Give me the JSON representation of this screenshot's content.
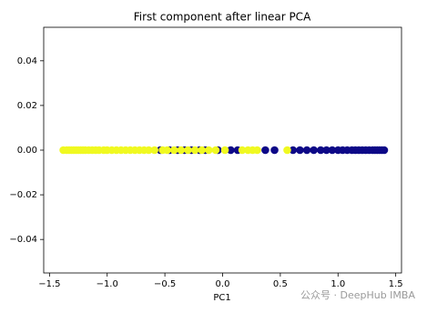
{
  "chart_data": {
    "type": "scatter",
    "title": "First component after linear PCA",
    "x_label": "PC1",
    "xlim": [
      -1.55,
      1.55
    ],
    "ylim": [
      -0.055,
      0.055
    ],
    "xticks": [
      {
        "value": -1.5,
        "label": "−1.5"
      },
      {
        "value": -1.0,
        "label": "−1.0"
      },
      {
        "value": -0.5,
        "label": "−0.5"
      },
      {
        "value": 0,
        "label": "0.0"
      },
      0.5,
      {
        "value": 1,
        "label": "1.0"
      },
      1.5
    ],
    "yticks": [
      {
        "value": -0.04,
        "label": "−0.04"
      },
      {
        "value": -0.02,
        "label": "−0.02"
      },
      {
        "value": 0,
        "label": "0.00"
      },
      0.02,
      0.04
    ],
    "series": [
      {
        "color": "#0d0887",
        "x": [
          -0.54,
          -0.46,
          -0.39,
          -0.33,
          -0.27,
          -0.2,
          -0.15,
          -0.04,
          0.07,
          0.13,
          0.37,
          0.45,
          0.61,
          0.67,
          0.73,
          0.79,
          0.85,
          0.9,
          0.95,
          1.0,
          1.04,
          1.08,
          1.12,
          1.15,
          1.18,
          1.21,
          1.24,
          1.27,
          1.3,
          1.32,
          1.34,
          1.36,
          1.38,
          1.4
        ],
        "values": [
          0,
          0,
          0,
          0,
          0,
          0,
          0,
          0,
          0,
          0,
          0,
          0,
          0,
          0,
          0,
          0,
          0,
          0,
          0,
          0,
          0,
          0,
          0,
          0,
          0,
          0,
          0,
          0,
          0,
          0,
          0,
          0,
          0,
          0
        ]
      },
      {
        "color": "#f0f921",
        "x": [
          -1.38,
          -1.35,
          -1.33,
          -1.31,
          -1.29,
          -1.27,
          -1.25,
          -1.23,
          -1.21,
          -1.19,
          -1.16,
          -1.13,
          -1.1,
          -1.07,
          -1.03,
          -1.0,
          -0.96,
          -0.92,
          -0.88,
          -0.84,
          -0.8,
          -0.76,
          -0.72,
          -0.68,
          -0.64,
          -0.59,
          -0.52,
          -0.48,
          -0.42,
          -0.36,
          -0.3,
          -0.24,
          -0.18,
          -0.12,
          -0.06,
          0.02,
          0.17,
          0.22,
          0.26,
          0.3,
          0.56
        ],
        "values": [
          0,
          0,
          0,
          0,
          0,
          0,
          0,
          0,
          0,
          0,
          0,
          0,
          0,
          0,
          0,
          0,
          0,
          0,
          0,
          0,
          0,
          0,
          0,
          0,
          0,
          0,
          0,
          0,
          0,
          0,
          0,
          0,
          0,
          0,
          0,
          0,
          0,
          0,
          0,
          0,
          0
        ]
      }
    ],
    "watermark": "公众号 · DeepHub IMBA"
  }
}
